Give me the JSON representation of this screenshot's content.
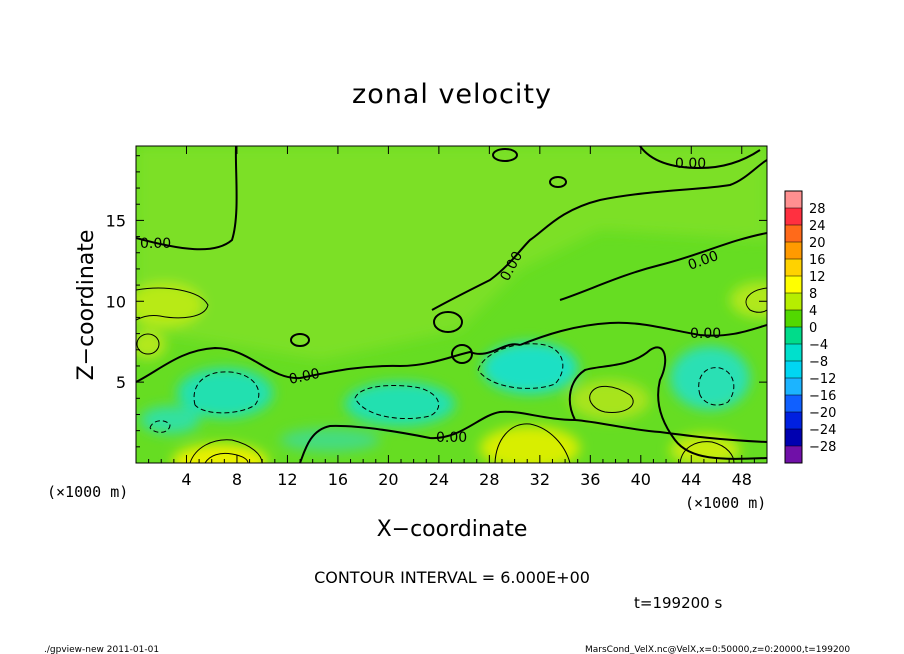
{
  "chart_data": {
    "type": "heatmap",
    "title": "zonal velocity",
    "xlabel": "X−coordinate",
    "ylabel": "Z−coordinate",
    "x_unit_left": "(×1000 m)",
    "x_unit_right": "(×1000 m)",
    "xlim": [
      0,
      50
    ],
    "ylim": [
      0,
      19.6
    ],
    "x_ticks": [
      4,
      8,
      12,
      16,
      20,
      24,
      28,
      32,
      36,
      40,
      44,
      48
    ],
    "x_tick_labels": [
      "4",
      "8",
      "12",
      "16",
      "20",
      "24",
      "28",
      "32",
      "36",
      "40",
      "44",
      "48"
    ],
    "y_ticks": [
      5,
      10,
      15
    ],
    "y_tick_labels": [
      "5",
      "10",
      "15"
    ],
    "colorbar": {
      "labels": [
        "28",
        "24",
        "20",
        "16",
        "12",
        "8",
        "4",
        "0",
        "−4",
        "−8",
        "−12",
        "−16",
        "−20",
        "−24",
        "−28"
      ],
      "colors": [
        "#ff9090",
        "#ff3040",
        "#ff6a1a",
        "#ff9a00",
        "#ffd200",
        "#ffff00",
        "#b6ee00",
        "#52d800",
        "#00dc8a",
        "#00e0cc",
        "#00d6f2",
        "#1cb4ff",
        "#1060ff",
        "#0020e0",
        "#0000b0",
        "#7010a8"
      ]
    },
    "contour_interval_text": "CONTOUR INTERVAL = 6.000E+00",
    "time_text": "t=199200 s",
    "contour_labels": [
      "0.00",
      "0.00",
      "0.00",
      "0.00",
      "0.00",
      "0.00",
      "0.00"
    ],
    "footer_left": "./gpview-new   2011-01-01",
    "footer_right": "MarsCond_VelX.nc@VelX,x=0:50000,z=0:20000,t=199200"
  }
}
